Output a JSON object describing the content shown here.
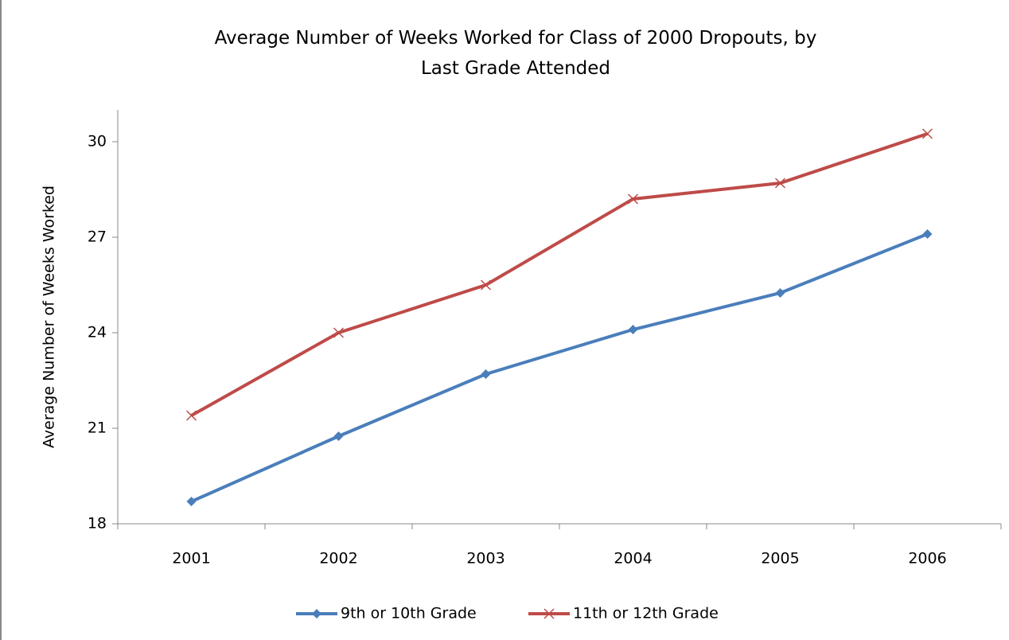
{
  "chart_data": {
    "type": "line",
    "title": "Average Number of Weeks Worked for Class of 2000 Dropouts, by Last Grade Attended",
    "y_label": "Average Number of Weeks Worked",
    "categories": [
      "2001",
      "2002",
      "2003",
      "2004",
      "2005",
      "2006"
    ],
    "series": [
      {
        "name": "9th or 10th Grade",
        "color": "#4a7ebb",
        "marker": "diamond",
        "values": [
          18.7,
          20.75,
          22.7,
          24.1,
          25.25,
          27.1
        ]
      },
      {
        "name": "11th or 12th Grade",
        "color": "#be4b48",
        "marker": "x",
        "values": [
          21.4,
          24.0,
          25.5,
          28.2,
          28.7,
          30.25
        ]
      }
    ],
    "ylim": [
      18,
      31
    ],
    "yticks": [
      18,
      21,
      24,
      27,
      30
    ],
    "grid": false,
    "legend": "bottom"
  }
}
